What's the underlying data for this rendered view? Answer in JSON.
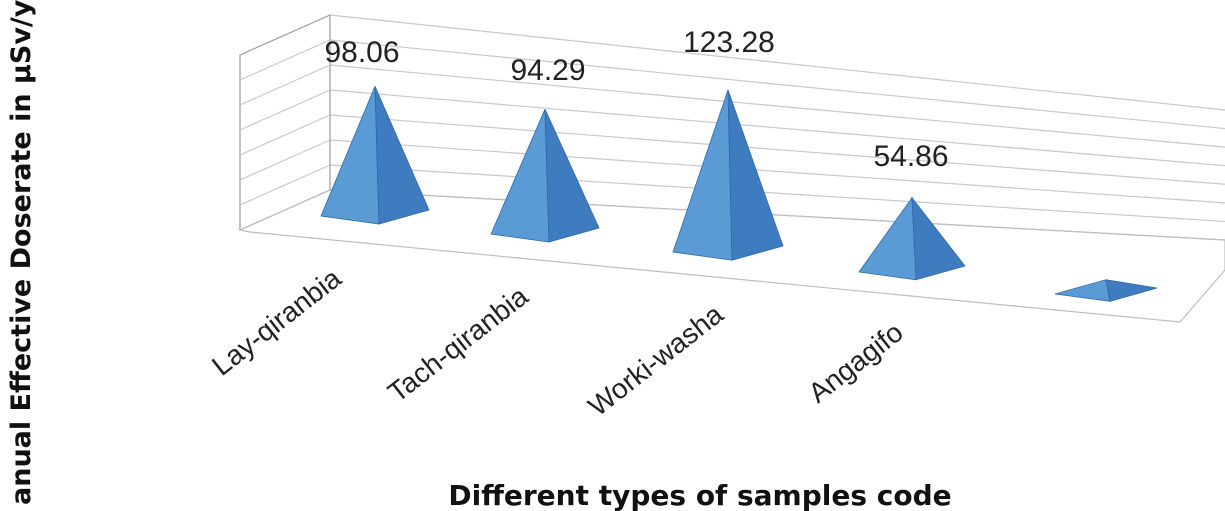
{
  "chart_data": {
    "type": "bar",
    "style": "3d-pyramid",
    "categories": [
      "Lay-qiranbia",
      "Tach-qiranbia",
      "Worki-washa",
      "Angagifo",
      ""
    ],
    "values": [
      98.06,
      94.29,
      123.28,
      54.86,
      8
    ],
    "data_labels": [
      "98.06",
      "94.29",
      "123.28",
      "54.86",
      ""
    ],
    "xlabel": "Different types of samples code",
    "ylabel": "anual Effective Doserate in µSv/yr",
    "grid": true,
    "legend": "none",
    "colors": {
      "front": "#5b9bd5",
      "side": "#3f7bbf",
      "edge": "#2e6aa8"
    }
  }
}
